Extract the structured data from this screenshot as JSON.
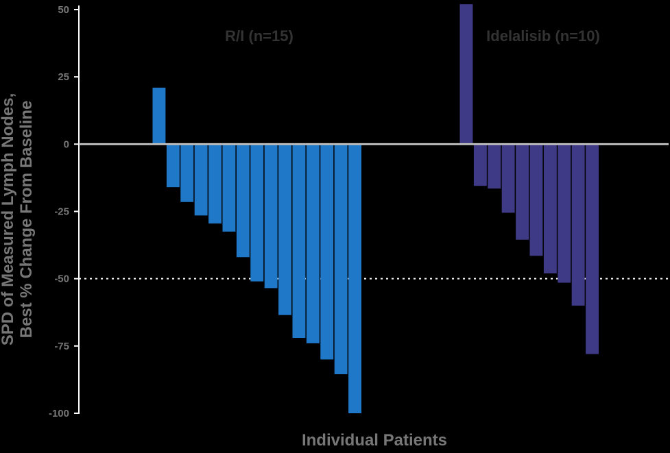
{
  "chart_data": {
    "type": "bar",
    "ylabel_line1": "SPD of Measured Lymph Nodes,",
    "ylabel_line2": "Best % Change From Baseline",
    "xlabel": "Individual Patients",
    "ylim": [
      -100,
      50
    ],
    "yticks": [
      50,
      25,
      0,
      -25,
      -50,
      -75,
      -100
    ],
    "ytick_labels": [
      "50",
      "25",
      "0",
      "-25",
      "-50",
      "-75",
      "-100"
    ],
    "reference_line": -50,
    "groups": [
      {
        "name": "R/I (n=15)",
        "color": "#1f78c8",
        "values": [
          21,
          -16,
          -21.5,
          -26.5,
          -29.5,
          -32.5,
          -42,
          -51,
          -53.5,
          -63.5,
          -72,
          -74,
          -80,
          -85.5,
          -100
        ]
      },
      {
        "name": "Idelalisib (n=10)",
        "color": "#3f3a86",
        "values": [
          52,
          -15.5,
          -16.5,
          -25.5,
          -35.5,
          -41.5,
          -48,
          -51.5,
          -60,
          -78
        ]
      }
    ]
  }
}
